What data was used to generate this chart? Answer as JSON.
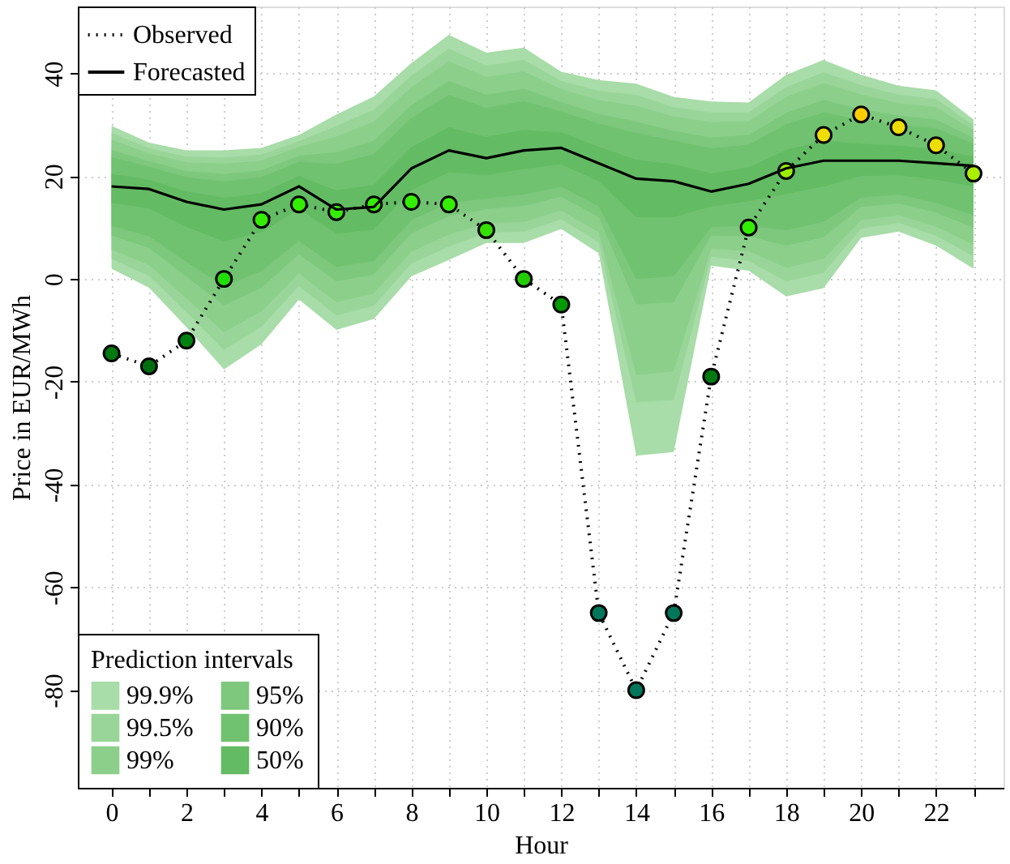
{
  "chart_data": {
    "type": "line",
    "xlabel": "Hour",
    "ylabel": "Price in EUR/MWh",
    "legend_title": "Prediction intervals",
    "legend": "bottom left",
    "grid": true,
    "x": [
      0,
      1,
      2,
      3,
      4,
      5,
      6,
      7,
      8,
      9,
      10,
      11,
      12,
      13,
      14,
      15,
      16,
      17,
      18,
      19,
      20,
      21,
      22,
      23
    ],
    "xlim": [
      -0.9,
      23.8
    ],
    "xticks": [
      0,
      {
        "value": 1,
        "label": null
      },
      2,
      {
        "value": 3,
        "label": null
      },
      4,
      {
        "value": 5,
        "label": null
      },
      6,
      {
        "value": 7,
        "label": null
      },
      8,
      {
        "value": 9,
        "label": null
      },
      10,
      {
        "value": 11,
        "label": null
      },
      12,
      {
        "value": 13,
        "label": null
      },
      14,
      {
        "value": 15,
        "label": null
      },
      16,
      {
        "value": 17,
        "label": null
      },
      18,
      {
        "value": 19,
        "label": null
      },
      20,
      {
        "value": 21,
        "label": null
      },
      22,
      {
        "value": 23,
        "label": null
      }
    ],
    "ylim": [
      -99,
      53
    ],
    "yticks": [
      -80,
      -60,
      -40,
      -20,
      0,
      20,
      40
    ],
    "series": [
      {
        "name": "99.9%",
        "color": "#a8dca8",
        "values": [
          null,
          null,
          null,
          null,
          null,
          null,
          null,
          null,
          null,
          null,
          null,
          null,
          null,
          null,
          null,
          null,
          null,
          null,
          null,
          null,
          null,
          null,
          null,
          null
        ],
        "upper": [
          29.8,
          26.5,
          25,
          25,
          25.5,
          28,
          32,
          35.5,
          42,
          47.5,
          44,
          45,
          40.3,
          38.7,
          38,
          35.4,
          34.5,
          34.3,
          39.7,
          42.6,
          39.7,
          37.6,
          36.7,
          31
        ],
        "lower": [
          2,
          -1.7,
          -9.4,
          -17.6,
          -12.7,
          -4,
          -9.9,
          -7.8,
          0.5,
          3.7,
          7,
          7,
          9.7,
          5,
          -34.4,
          -33.7,
          2.6,
          1.6,
          -3.4,
          -1.8,
          8,
          9.2,
          6.5,
          2
        ]
      },
      {
        "name": "99.5%",
        "color": "#99d599",
        "values": [
          null,
          null,
          null,
          null,
          null,
          null,
          null,
          null,
          null,
          null,
          null,
          null,
          null,
          null,
          null,
          null,
          null,
          null,
          null,
          null,
          null,
          null,
          null,
          null
        ],
        "upper": [
          28.4,
          25.4,
          23.8,
          23.6,
          24.2,
          26.8,
          29.8,
          32.9,
          39.5,
          44.8,
          41.5,
          42.6,
          38.5,
          36.6,
          35.8,
          33.4,
          32.4,
          32.4,
          37.3,
          40.2,
          37.7,
          35.8,
          35,
          29.9
        ],
        "lower": [
          3.9,
          0.6,
          -6.5,
          -13.8,
          -9.3,
          -1.4,
          -7.1,
          -5.2,
          3,
          6.3,
          9,
          9.2,
          11.6,
          7.1,
          -24,
          -23.5,
          4.3,
          3.5,
          -0.5,
          1.2,
          9.8,
          10.9,
          8.4,
          4.4
        ]
      },
      {
        "name": "99%",
        "color": "#8bcf8b",
        "values": [
          null,
          null,
          null,
          null,
          null,
          null,
          null,
          null,
          null,
          null,
          null,
          null,
          null,
          null,
          null,
          null,
          null,
          null,
          null,
          null,
          null,
          null,
          null,
          null
        ],
        "upper": [
          27.1,
          24.4,
          22.7,
          22.4,
          23,
          25.7,
          27.7,
          30.6,
          37.3,
          42.3,
          39.3,
          40.4,
          36.9,
          34.8,
          33.7,
          31.6,
          30.5,
          30.7,
          35.4,
          38.1,
          35.9,
          34.2,
          33.4,
          28.9
        ],
        "lower": [
          5.7,
          2.7,
          -3.8,
          -10.4,
          -6.3,
          1.1,
          -4.5,
          -2.8,
          5.3,
          8.6,
          10.8,
          11.1,
          13.3,
          9,
          -18.7,
          -18,
          5.9,
          5.4,
          2.2,
          3.9,
          11.4,
          12.4,
          10.2,
          6.6
        ]
      },
      {
        "name": "95%",
        "color": "#7dc87d",
        "values": [
          null,
          null,
          null,
          null,
          null,
          null,
          null,
          null,
          null,
          null,
          null,
          null,
          null,
          null,
          null,
          null,
          null,
          null,
          null,
          null,
          null,
          null,
          null,
          null
        ],
        "upper": [
          25.1,
          22.9,
          21,
          20.4,
          21.1,
          24,
          24.6,
          26.9,
          33.8,
          38.5,
          35.8,
          37,
          34.4,
          32.1,
          30.6,
          28.8,
          27.5,
          28,
          32.3,
          34.8,
          33,
          31.8,
          31,
          27.4
        ],
        "lower": [
          8.4,
          6,
          0.4,
          -5.1,
          -1.7,
          4.8,
          -0.5,
          0.9,
          8.9,
          12.2,
          13.6,
          14.2,
          16,
          12,
          -5,
          -4.5,
          8.4,
          8.3,
          6.5,
          8.1,
          14,
          14.7,
          12.9,
          10
        ]
      },
      {
        "name": "90%",
        "color": "#70c270",
        "values": [
          null,
          null,
          null,
          null,
          null,
          null,
          null,
          null,
          null,
          null,
          null,
          null,
          null,
          null,
          null,
          null,
          null,
          null,
          null,
          null,
          null,
          null,
          null,
          null
        ],
        "upper": [
          23.7,
          21.8,
          19.8,
          19,
          19.8,
          22.8,
          22.4,
          24.3,
          31.3,
          35.8,
          33.3,
          34.6,
          32.6,
          30.2,
          28.4,
          26.9,
          25.4,
          26.1,
          30.1,
          32.4,
          31,
          30,
          29.3,
          26.3
        ],
        "lower": [
          10.3,
          8.3,
          3.3,
          -1.4,
          1.5,
          7.4,
          2.3,
          3.5,
          11.4,
          14.8,
          15.6,
          16.4,
          17.9,
          14.1,
          0,
          0.5,
          10.1,
          10.3,
          9.5,
          11.1,
          15.8,
          16.4,
          14.8,
          12.4
        ]
      },
      {
        "name": "50%",
        "color": "#63bb63",
        "values": [
          null,
          null,
          null,
          null,
          null,
          null,
          null,
          null,
          null,
          null,
          null,
          null,
          null,
          null,
          null,
          null,
          null,
          null,
          null,
          null,
          null,
          null,
          null,
          null
        ],
        "upper": [
          20.4,
          19.3,
          17,
          15.8,
          16.7,
          20,
          17.2,
          18.3,
          25.6,
          29.5,
          27.6,
          29,
          28.5,
          25.7,
          23.2,
          22.3,
          20.5,
          21.7,
          25.1,
          26.9,
          26.3,
          25.9,
          25.3,
          23.8
        ],
        "lower": [
          14.8,
          13.7,
          10.1,
          7.3,
          9.1,
          13.6,
          8.8,
          9.6,
          17.3,
          20.7,
          20.2,
          21.4,
          22.3,
          19,
          12,
          12,
          14.1,
          15.1,
          16.5,
          18,
          20,
          20.2,
          19.3,
          18
        ]
      },
      {
        "name": "Observed",
        "line_style": "dotted",
        "marker": "circle",
        "color": "#000000",
        "values": [
          -14.5,
          -17,
          -12,
          0,
          11.5,
          14.5,
          13,
          14.5,
          15,
          14.5,
          9.5,
          0,
          -5,
          -65,
          -80,
          -65,
          -19,
          10,
          21,
          28,
          32,
          29.5,
          26,
          20.5
        ],
        "colors": [
          "#007a10",
          "#006e10",
          "#008010",
          "#22dd00",
          "#33ee00",
          "#33ee00",
          "#33ee00",
          "#33ee00",
          "#33ee00",
          "#33ee00",
          "#33e000",
          "#22cc00",
          "#009a00",
          "#00775a",
          "#00775a",
          "#00775a",
          "#007a10",
          "#33ee00",
          "#99ee00",
          "#eedd00",
          "#ffcc00",
          "#eedd00",
          "#eedd00",
          "#aaee00"
        ]
      },
      {
        "name": "Forecasted",
        "line_style": "solid",
        "color": "#000000",
        "values": [
          18,
          17.5,
          15,
          13.5,
          14.5,
          18,
          13.5,
          14,
          21.5,
          25,
          23.5,
          25,
          25.5,
          22.5,
          19.5,
          19,
          17,
          18.5,
          21.5,
          23,
          23,
          23,
          22.5,
          22
        ]
      }
    ]
  }
}
